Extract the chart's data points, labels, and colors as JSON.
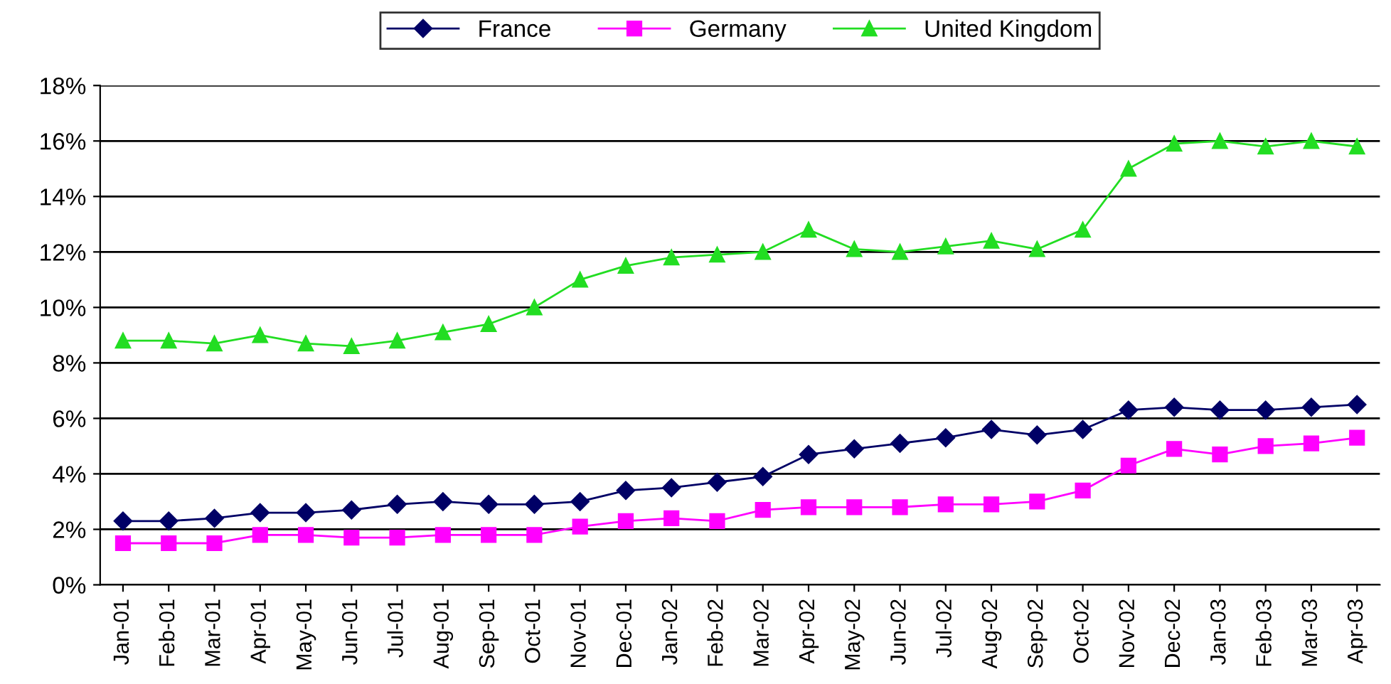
{
  "chart_data": {
    "type": "line",
    "categories": [
      "Jan-01",
      "Feb-01",
      "Mar-01",
      "Apr-01",
      "May-01",
      "Jun-01",
      "Jul-01",
      "Aug-01",
      "Sep-01",
      "Oct-01",
      "Nov-01",
      "Dec-01",
      "Jan-02",
      "Feb-02",
      "Mar-02",
      "Apr-02",
      "May-02",
      "Jun-02",
      "Jul-02",
      "Aug-02",
      "Sep-02",
      "Oct-02",
      "Nov-02",
      "Dec-02",
      "Jan-03",
      "Feb-03",
      "Mar-03",
      "Apr-03"
    ],
    "series": [
      {
        "name": "France",
        "color": "#000066",
        "marker": "diamond",
        "values": [
          2.3,
          2.3,
          2.4,
          2.6,
          2.6,
          2.7,
          2.9,
          3.0,
          2.9,
          2.9,
          3.0,
          3.4,
          3.5,
          3.7,
          3.9,
          4.7,
          4.9,
          5.1,
          5.3,
          5.6,
          5.4,
          5.6,
          6.3,
          6.4,
          6.3,
          6.3,
          6.4,
          6.5
        ]
      },
      {
        "name": "Germany",
        "color": "#ff00ff",
        "marker": "square",
        "values": [
          1.5,
          1.5,
          1.5,
          1.8,
          1.8,
          1.7,
          1.7,
          1.8,
          1.8,
          1.8,
          2.1,
          2.3,
          2.4,
          2.3,
          2.7,
          2.8,
          2.8,
          2.8,
          2.9,
          2.9,
          3.0,
          3.4,
          4.3,
          4.9,
          4.7,
          5.0,
          5.1,
          5.3
        ]
      },
      {
        "name": "United Kingdom",
        "color": "#22dd22",
        "marker": "triangle",
        "values": [
          8.8,
          8.8,
          8.7,
          9.0,
          8.7,
          8.6,
          8.8,
          9.1,
          9.4,
          10.0,
          11.0,
          11.5,
          11.8,
          11.9,
          12.0,
          12.8,
          12.1,
          12.0,
          12.2,
          12.4,
          12.1,
          12.8,
          15.0,
          15.9,
          16.0,
          15.8,
          16.0,
          15.8
        ]
      }
    ],
    "ylim": [
      0,
      18
    ],
    "yticks": [
      {
        "value": 0,
        "label": "0%"
      },
      {
        "value": 2,
        "label": "2%"
      },
      {
        "value": 4,
        "label": "4%"
      },
      {
        "value": 6,
        "label": "6%"
      },
      {
        "value": 8,
        "label": "8%"
      },
      {
        "value": 10,
        "label": "10%"
      },
      {
        "value": 12,
        "label": "12%"
      },
      {
        "value": 14,
        "label": "14%"
      },
      {
        "value": 16,
        "label": "16%"
      },
      {
        "value": 18,
        "label": "18%"
      }
    ],
    "grid": "y",
    "legend": "top",
    "line_style": "solid"
  }
}
